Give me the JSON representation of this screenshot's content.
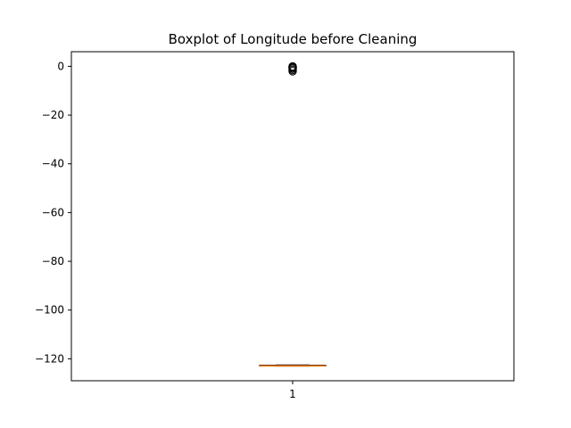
{
  "chart_data": {
    "type": "boxplot",
    "title": "Boxplot of Longitude before Cleaning",
    "xlabel": "",
    "ylabel": "",
    "categories": [
      "1"
    ],
    "ylim": [
      -129,
      6
    ],
    "yticks": [
      0,
      -20,
      -40,
      -60,
      -80,
      -100,
      -120
    ],
    "ytick_labels": [
      "0",
      "−20",
      "−40",
      "−60",
      "−80",
      "−100",
      "−120"
    ],
    "boxes": [
      {
        "category": "1",
        "whisker_low": -123.0,
        "q1": -122.95,
        "median": -122.9,
        "q3": -122.6,
        "whisker_high": -122.5,
        "outliers": [
          0.0,
          -0.2,
          -0.4,
          -0.6,
          -1.0,
          -1.5,
          -2.0
        ]
      }
    ],
    "grid": false,
    "colors": {
      "box": "#000000",
      "median": "#ff7f0e",
      "outlier": "#000000"
    }
  }
}
